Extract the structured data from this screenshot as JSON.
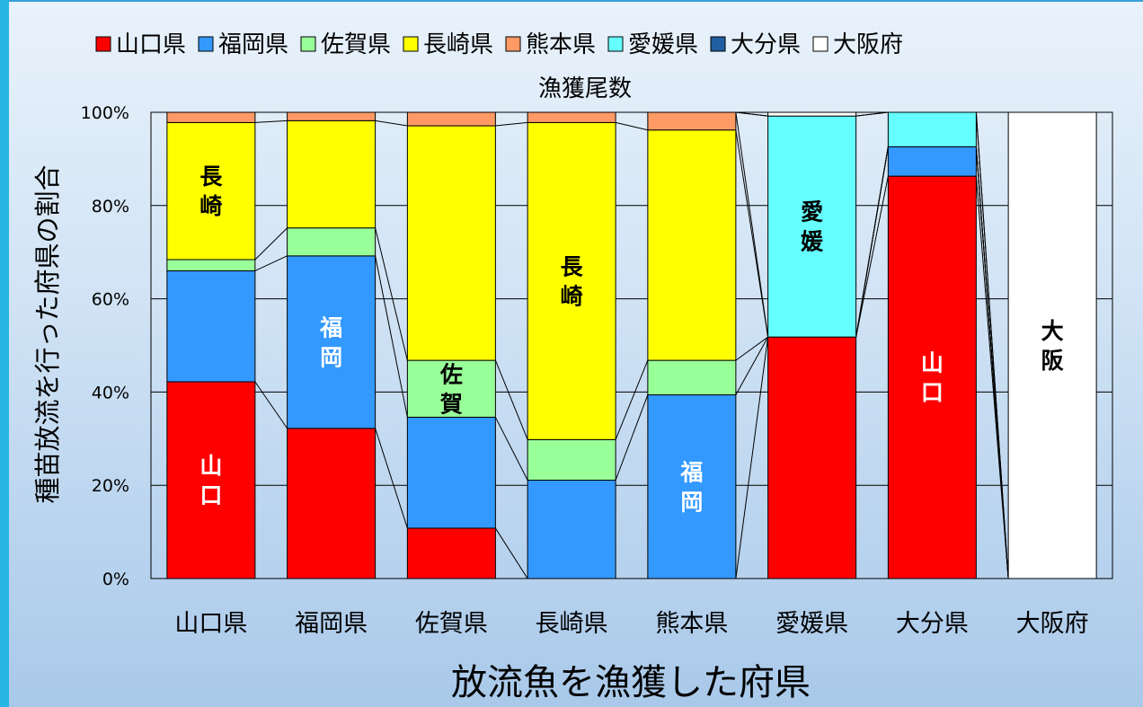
{
  "chart_data": {
    "type": "bar",
    "stacked": "percent",
    "title": "漁獲尾数",
    "xlabel": "放流魚を漁獲した府県",
    "ylabel": "種苗放流を行った府県の割合",
    "ylim": [
      0,
      100
    ],
    "yticks": [
      "0%",
      "20%",
      "40%",
      "60%",
      "80%",
      "100%"
    ],
    "grid": true,
    "legend_position": "top",
    "categories": [
      "山口県",
      "福岡県",
      "佐賀県",
      "長崎県",
      "熊本県",
      "愛媛県",
      "大分県",
      "大阪府"
    ],
    "series": [
      {
        "name": "山口県",
        "color": "#ff0000",
        "values": [
          42.2,
          32.2,
          10.8,
          0,
          0,
          51.8,
          86.3,
          0
        ]
      },
      {
        "name": "福岡県",
        "color": "#3399ff",
        "values": [
          23.8,
          37.0,
          23.8,
          21.1,
          39.4,
          0,
          6.3,
          0
        ]
      },
      {
        "name": "佐賀県",
        "color": "#99ff99",
        "values": [
          2.4,
          6.0,
          12.2,
          8.7,
          7.4,
          0,
          0,
          0
        ]
      },
      {
        "name": "長崎県",
        "color": "#ffff00",
        "values": [
          29.4,
          23.0,
          50.3,
          68.0,
          49.4,
          0,
          0,
          0
        ]
      },
      {
        "name": "熊本県",
        "color": "#ff9966",
        "values": [
          2.2,
          1.8,
          2.9,
          2.2,
          3.8,
          0,
          0,
          0
        ]
      },
      {
        "name": "愛媛県",
        "color": "#66ffff",
        "values": [
          0,
          0,
          0,
          0,
          0,
          47.4,
          7.4,
          0
        ]
      },
      {
        "name": "大分県",
        "color": "#1f5fa0",
        "values": [
          0,
          0,
          0,
          0,
          0,
          0,
          0,
          0
        ]
      },
      {
        "name": "大阪府",
        "color": "#ffffff",
        "values": [
          0,
          0,
          0,
          0,
          0,
          0.8,
          0,
          100
        ]
      }
    ],
    "data_labels": [
      {
        "text": "長崎",
        "category": 0,
        "series": 3,
        "color": "#000000"
      },
      {
        "text": "山口",
        "category": 0,
        "series": 0,
        "color": "#ffffff"
      },
      {
        "text": "福岡",
        "category": 1,
        "series": 1,
        "color": "#ffffff"
      },
      {
        "text": "佐賀",
        "category": 2,
        "series": 2,
        "color": "#000000"
      },
      {
        "text": "長崎",
        "category": 3,
        "series": 3,
        "color": "#000000"
      },
      {
        "text": "福岡",
        "category": 4,
        "series": 1,
        "color": "#ffffff"
      },
      {
        "text": "愛媛",
        "category": 5,
        "series": 5,
        "color": "#000000"
      },
      {
        "text": "山口",
        "category": 6,
        "series": 0,
        "color": "#ffffff"
      },
      {
        "text": "大阪",
        "category": 7,
        "series": 7,
        "color": "#000000"
      }
    ]
  }
}
